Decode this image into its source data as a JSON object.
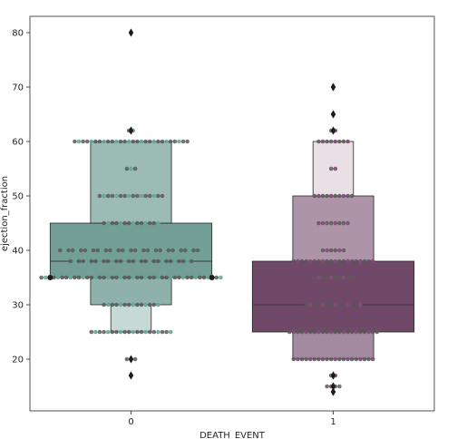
{
  "chart_data": {
    "type": "boxen",
    "title": "",
    "xlabel": "DEATH_EVENT",
    "ylabel": "ejection_fraction",
    "categories": [
      "0",
      "1"
    ],
    "ylim": [
      10.5,
      83.0
    ],
    "yticks": [
      20,
      30,
      40,
      50,
      60,
      70,
      80
    ],
    "groups": [
      {
        "category": "0",
        "median": 38,
        "boxes": [
          {
            "low": 35,
            "high": 45,
            "color": "#739f96"
          },
          {
            "low": 30,
            "high": 35,
            "color": "#8eb2ab"
          },
          {
            "low": 45,
            "high": 60,
            "color": "#9bbbb4"
          },
          {
            "low": 25,
            "high": 30,
            "color": "#c6d9d5"
          }
        ],
        "outliers": [
          80,
          62,
          20,
          17
        ],
        "swarm_color": "#64a89a",
        "swarm": [
          {
            "y": 80,
            "n": 1
          },
          {
            "y": 62,
            "n": 2
          },
          {
            "y": 60,
            "n": 28
          },
          {
            "y": 55,
            "n": 3
          },
          {
            "y": 50,
            "n": 16
          },
          {
            "y": 45,
            "n": 14
          },
          {
            "y": 40,
            "n": 35
          },
          {
            "y": 38,
            "n": 30
          },
          {
            "y": 35,
            "n": 44
          },
          {
            "y": 30,
            "n": 14
          },
          {
            "y": 25,
            "n": 20
          },
          {
            "y": 20,
            "n": 3
          },
          {
            "y": 17,
            "n": 1
          }
        ]
      },
      {
        "category": "1",
        "median": 30,
        "boxes": [
          {
            "low": 25,
            "high": 38,
            "color": "#704868"
          },
          {
            "low": 38,
            "high": 50,
            "color": "#ae94a8"
          },
          {
            "low": 20,
            "high": 25,
            "color": "#a48aa0"
          },
          {
            "low": 50,
            "high": 60,
            "color": "#e9e0e6"
          }
        ],
        "outliers": [
          70,
          65,
          62,
          17,
          15,
          14
        ],
        "swarm_color": "#834a79",
        "swarm": [
          {
            "y": 70,
            "n": 1
          },
          {
            "y": 65,
            "n": 1
          },
          {
            "y": 62,
            "n": 2
          },
          {
            "y": 60,
            "n": 8
          },
          {
            "y": 55,
            "n": 2
          },
          {
            "y": 50,
            "n": 10
          },
          {
            "y": 45,
            "n": 8
          },
          {
            "y": 40,
            "n": 6
          },
          {
            "y": 38,
            "n": 20
          },
          {
            "y": 35,
            "n": 10
          },
          {
            "y": 30,
            "n": 14
          },
          {
            "y": 25,
            "n": 22
          },
          {
            "y": 20,
            "n": 20
          },
          {
            "y": 17,
            "n": 2
          },
          {
            "y": 15,
            "n": 4
          },
          {
            "y": 14,
            "n": 1
          }
        ]
      }
    ]
  }
}
